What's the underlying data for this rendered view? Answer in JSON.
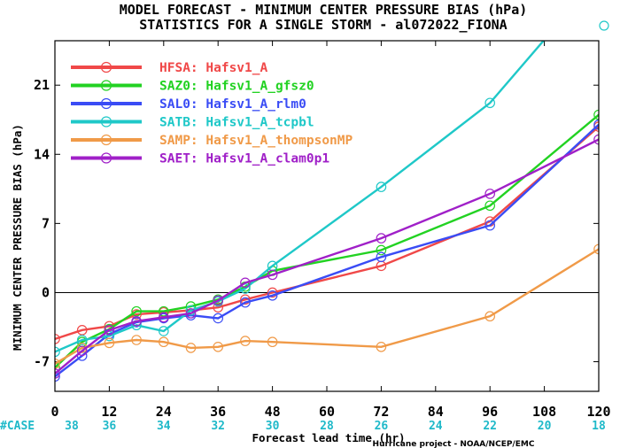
{
  "chart_data": {
    "type": "line",
    "title": "MODEL FORECAST - MINIMUM CENTER PRESSURE BIAS (hPa)",
    "subtitle": "STATISTICS FOR A SINGLE STORM - al072022_FIONA",
    "xlabel": "Forecast lead time (hr)",
    "ylabel": "MINIMUM CENTER PRESSURE BIAS (hPa)",
    "xlim": [
      0,
      120
    ],
    "ylim": [
      -10,
      25.5
    ],
    "x_ticks": [
      0,
      12,
      24,
      36,
      48,
      60,
      72,
      84,
      96,
      108,
      120
    ],
    "y_ticks": [
      -7,
      0,
      7,
      14,
      21
    ],
    "case_label": "#CASE",
    "cases": [
      38,
      36,
      34,
      32,
      30,
      28,
      26,
      24,
      22,
      20,
      18
    ],
    "credit": "Hurricane project - NOAA/NCEP/EMC",
    "legend_position": "top-left",
    "series": [
      {
        "code": "HFSA",
        "name": "Hafsv1_A",
        "color": "#f04848",
        "x": [
          0,
          6,
          12,
          18,
          24,
          30,
          36,
          42,
          48,
          72,
          96,
          120
        ],
        "y": [
          -4.7,
          -3.8,
          -3.4,
          -2.2,
          -2.0,
          -1.8,
          -1.5,
          -0.7,
          0.0,
          2.7,
          7.2,
          16.8
        ]
      },
      {
        "code": "SAZ0",
        "name": "Hafsv1_A_gfsz0",
        "color": "#22d222",
        "x": [
          0,
          6,
          12,
          18,
          24,
          30,
          36,
          42,
          48,
          72,
          96,
          120
        ],
        "y": [
          -7.6,
          -5.0,
          -3.7,
          -1.9,
          -1.9,
          -1.4,
          -0.7,
          0.6,
          2.2,
          4.3,
          8.8,
          18.0
        ]
      },
      {
        "code": "SAL0",
        "name": "Hafsv1_A_rlm0",
        "color": "#3a4cf5",
        "x": [
          0,
          6,
          12,
          18,
          24,
          30,
          36,
          42,
          48,
          72,
          96,
          120
        ],
        "y": [
          -8.5,
          -6.4,
          -4.2,
          -3.0,
          -2.6,
          -2.3,
          -2.6,
          -1.0,
          -0.3,
          3.6,
          6.8,
          17.0
        ]
      },
      {
        "code": "SATB",
        "name": "Hafsv1_A_tcpbl",
        "color": "#1fc8c8",
        "x": [
          0,
          6,
          12,
          18,
          24,
          30,
          36,
          42,
          48,
          72,
          96,
          120
        ],
        "y": [
          -6.0,
          -4.8,
          -4.4,
          -3.3,
          -3.9,
          -1.8,
          -0.9,
          0.4,
          2.7,
          10.7,
          19.2,
          32.0
        ]
      },
      {
        "code": "SAMP",
        "name": "Hafsv1_A_thompsonMP",
        "color": "#f09a48",
        "x": [
          0,
          6,
          12,
          18,
          24,
          30,
          36,
          42,
          48,
          72,
          96,
          120
        ],
        "y": [
          -7.2,
          -5.6,
          -5.1,
          -4.8,
          -5.0,
          -5.6,
          -5.5,
          -4.9,
          -5.0,
          -5.5,
          -2.4,
          4.4
        ]
      },
      {
        "code": "SAET",
        "name": "Hafsv1_A_clam0p1",
        "color": "#a020c8",
        "x": [
          0,
          6,
          12,
          18,
          24,
          30,
          36,
          42,
          48,
          72,
          96,
          120
        ],
        "y": [
          -8.2,
          -5.9,
          -3.8,
          -2.9,
          -2.5,
          -2.1,
          -0.8,
          1.0,
          1.8,
          5.5,
          10.0,
          15.5
        ]
      }
    ]
  }
}
